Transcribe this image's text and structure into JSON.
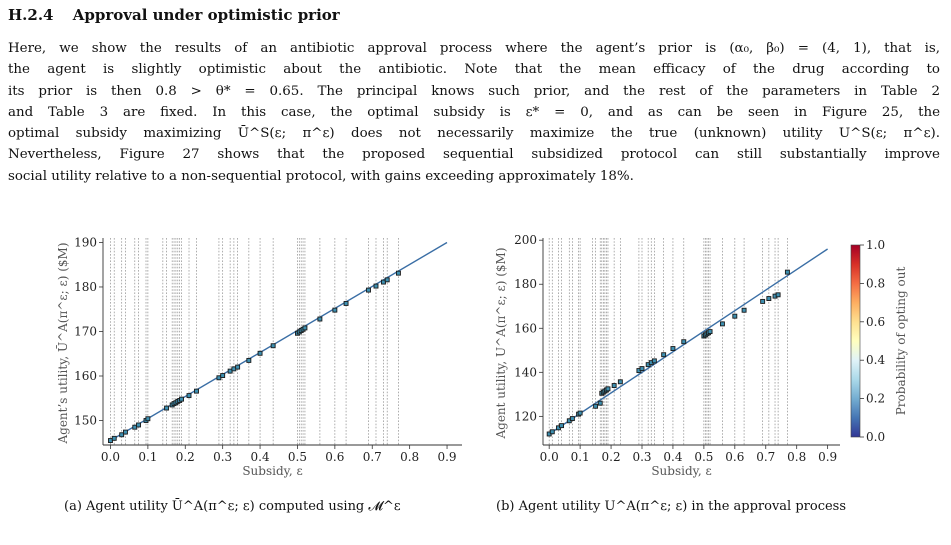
{
  "section": {
    "number": "H.2.4",
    "title": "Approval under optimistic prior"
  },
  "paragraph_lines": [
    "Here, we show the results of an antibiotic approval process where the agent’s prior is (α₀, β₀) = (4, 1), that is,",
    "the agent is slightly optimistic about the antibiotic. Note that the mean efficacy of the drug according to",
    "its prior is then 0.8 > θ* = 0.65. The principal knows such prior, and the rest of the parameters in Table 2",
    "and Table 3 are fixed. In this case, the optimal subsidy is ε* = 0, and as can be seen in Figure 25, the",
    "optimal subsidy maximizing Ū^S(ε; π^ε) does not necessarily maximize the true (unknown) utility U^S(ε; π^ε).",
    "Nevertheless, Figure 27 shows that the proposed sequential subsidized protocol can still substantially improve",
    "social utility relative to a non-sequential protocol, with gains exceeding approximately 18%."
  ],
  "captions": {
    "a": "(a) Agent utility Ū^A(π^ε; ε) computed using 𝓜^ε",
    "b": "(b) Agent utility U^A(π^ε; ε) in the approval process"
  },
  "colors": {
    "line": "#3a6ea5",
    "marker": "#1a1a1a",
    "vline": "#8c8c8c"
  },
  "colorbar": {
    "label": "Probability of opting out",
    "ticks": [
      0.0,
      0.2,
      0.4,
      0.6,
      0.8,
      1.0
    ],
    "colors": [
      "#313695",
      "#4575b4",
      "#74add1",
      "#abd9e9",
      "#e0f3f8",
      "#ffffbf",
      "#fee090",
      "#fdae61",
      "#f46d43",
      "#d73027",
      "#a50026"
    ]
  },
  "chart_data": [
    {
      "type": "line",
      "xlabel": "Subsidy, ε",
      "ylabel": "Agent’s utility, Ū^A(π^ε; ε) ($M)",
      "xlim": [
        -0.02,
        0.94
      ],
      "ylim": [
        144.5,
        191
      ],
      "xticks": [
        0.0,
        0.1,
        0.2,
        0.3,
        0.4,
        0.5,
        0.6,
        0.7,
        0.8,
        0.9
      ],
      "yticks": [
        150,
        160,
        170,
        180,
        190
      ],
      "line": {
        "x": [
          0.0,
          0.9
        ],
        "y": [
          145.5,
          190.0
        ]
      },
      "markers": {
        "x": [
          0.0,
          0.01,
          0.03,
          0.04,
          0.065,
          0.075,
          0.095,
          0.1,
          0.15,
          0.165,
          0.17,
          0.175,
          0.18,
          0.185,
          0.19,
          0.21,
          0.23,
          0.29,
          0.3,
          0.32,
          0.33,
          0.34,
          0.37,
          0.4,
          0.435,
          0.5,
          0.505,
          0.51,
          0.515,
          0.52,
          0.56,
          0.6,
          0.63,
          0.69,
          0.71,
          0.73,
          0.74,
          0.77
        ],
        "y": [
          145.5,
          146.0,
          146.8,
          147.4,
          148.5,
          149.0,
          150.0,
          150.4,
          152.8,
          153.5,
          153.8,
          154.0,
          154.3,
          154.5,
          154.8,
          155.6,
          156.6,
          159.6,
          160.1,
          161.1,
          161.6,
          162.0,
          163.5,
          165.1,
          166.8,
          169.6,
          169.9,
          170.2,
          170.5,
          170.8,
          172.8,
          174.8,
          176.3,
          179.3,
          180.2,
          181.1,
          181.6,
          183.1
        ]
      },
      "vlines": [
        0.0,
        0.01,
        0.03,
        0.04,
        0.065,
        0.075,
        0.095,
        0.1,
        0.14,
        0.15,
        0.165,
        0.17,
        0.175,
        0.18,
        0.185,
        0.19,
        0.21,
        0.23,
        0.29,
        0.3,
        0.32,
        0.33,
        0.34,
        0.37,
        0.4,
        0.435,
        0.5,
        0.505,
        0.51,
        0.515,
        0.52,
        0.56,
        0.6,
        0.63,
        0.69,
        0.71,
        0.73,
        0.74,
        0.77
      ]
    },
    {
      "type": "line",
      "xlabel": "Subsidy, ε",
      "ylabel": "Agent utility, U^A(π^ε; ε) ($M)",
      "xlim": [
        -0.02,
        0.94
      ],
      "ylim": [
        107,
        201
      ],
      "xticks": [
        0.0,
        0.1,
        0.2,
        0.3,
        0.4,
        0.5,
        0.6,
        0.7,
        0.8,
        0.9
      ],
      "yticks": [
        120,
        140,
        160,
        180,
        200
      ],
      "line": {
        "x": [
          0.0,
          0.9
        ],
        "y": [
          112.0,
          196.0
        ]
      },
      "markers": {
        "x": [
          0.0,
          0.01,
          0.03,
          0.04,
          0.065,
          0.075,
          0.095,
          0.1,
          0.15,
          0.165,
          0.17,
          0.175,
          0.18,
          0.185,
          0.19,
          0.21,
          0.23,
          0.29,
          0.3,
          0.32,
          0.33,
          0.34,
          0.37,
          0.4,
          0.435,
          0.5,
          0.505,
          0.51,
          0.515,
          0.52,
          0.56,
          0.6,
          0.63,
          0.69,
          0.71,
          0.73,
          0.74,
          0.77
        ],
        "y": [
          112.0,
          113.0,
          114.8,
          115.8,
          118.0,
          119.0,
          121.0,
          121.5,
          124.6,
          126.0,
          130.5,
          131.0,
          131.5,
          132.0,
          132.5,
          134.0,
          135.7,
          140.8,
          141.7,
          143.5,
          144.4,
          145.2,
          148.0,
          150.8,
          153.9,
          156.5,
          157.0,
          157.5,
          158.0,
          158.5,
          162.0,
          165.5,
          168.2,
          172.2,
          173.5,
          174.6,
          175.2,
          185.5
        ]
      },
      "vlines": [
        0.0,
        0.01,
        0.03,
        0.04,
        0.065,
        0.075,
        0.095,
        0.1,
        0.14,
        0.15,
        0.165,
        0.17,
        0.175,
        0.18,
        0.185,
        0.19,
        0.21,
        0.23,
        0.29,
        0.3,
        0.32,
        0.33,
        0.34,
        0.37,
        0.4,
        0.435,
        0.5,
        0.505,
        0.51,
        0.515,
        0.52,
        0.56,
        0.6,
        0.63,
        0.69,
        0.71,
        0.73,
        0.74,
        0.77
      ]
    }
  ]
}
